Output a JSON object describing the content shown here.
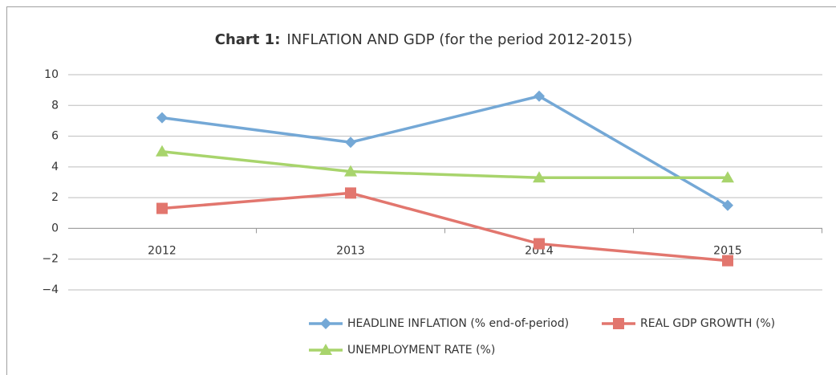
{
  "chart_data": {
    "type": "line",
    "title_label": "Chart 1:",
    "title": "INFLATION AND GDP (for the period 2012-2015)",
    "categories": [
      "2012",
      "2013",
      "2014",
      "2015"
    ],
    "series": [
      {
        "name": "HEADLINE INFLATION (% end-of-period)",
        "color": "#74a8d6",
        "marker": "diamond",
        "values": [
          7.2,
          5.6,
          8.6,
          1.5
        ]
      },
      {
        "name": "REAL GDP GROWTH (%)",
        "color": "#e2766e",
        "marker": "square",
        "values": [
          1.3,
          2.3,
          -1.0,
          -2.1
        ]
      },
      {
        "name": "UNEMPLOYMENT RATE (%)",
        "color": "#a8d46c",
        "marker": "triangle",
        "values": [
          5.0,
          3.7,
          3.3,
          3.3
        ]
      }
    ],
    "ylim": [
      -4,
      10
    ],
    "yticks": [
      {
        "value": -4,
        "label": "−4"
      },
      {
        "value": -2,
        "label": "−2"
      },
      0,
      2,
      4,
      6,
      8,
      10
    ],
    "grid": true
  }
}
